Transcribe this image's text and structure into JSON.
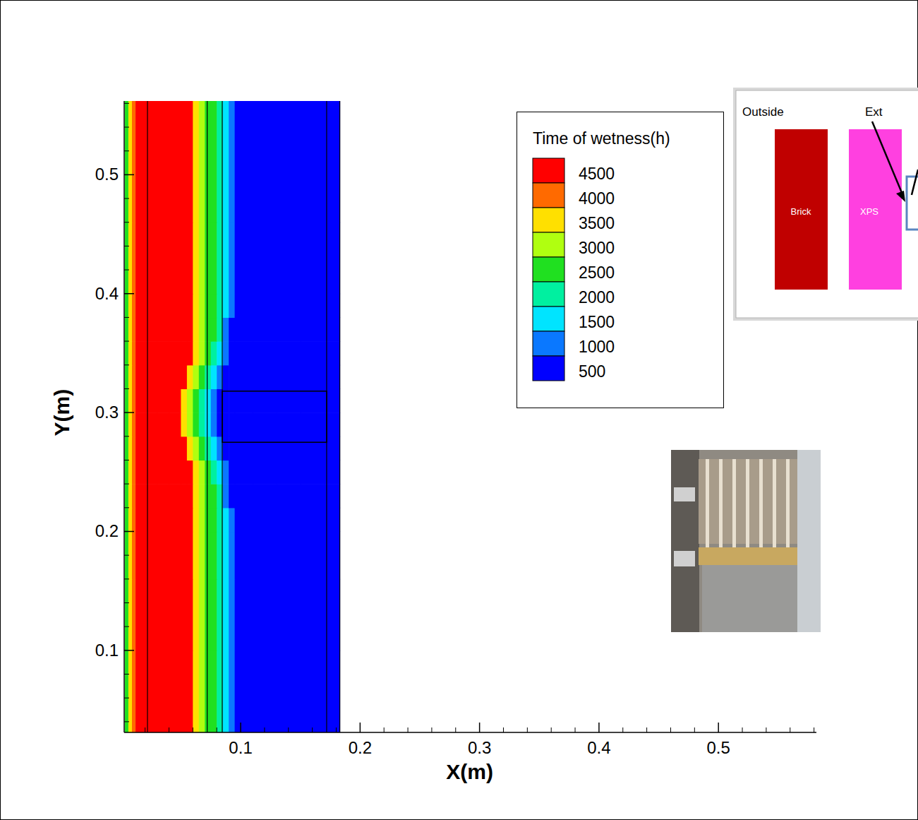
{
  "chart_data": {
    "type": "contour",
    "x_label": "X(m)",
    "y_label": "Y(m)",
    "xlim": [
      0.0025,
      0.582
    ],
    "ylim": [
      0.031,
      0.562
    ],
    "xticks": [
      0.1,
      0.2,
      0.3,
      0.4,
      0.5
    ],
    "yticks": [
      0.1,
      0.2,
      0.3,
      0.4,
      0.5
    ],
    "x_edges": [
      0.003,
      0.006,
      0.009,
      0.012,
      0.02,
      0.03,
      0.04,
      0.05,
      0.055,
      0.06,
      0.065,
      0.07,
      0.075,
      0.08,
      0.085,
      0.09,
      0.095,
      0.11,
      0.13,
      0.15,
      0.17,
      0.183
    ],
    "y_edges": [
      0.031,
      0.1,
      0.16,
      0.2,
      0.22,
      0.24,
      0.26,
      0.28,
      0.3,
      0.32,
      0.34,
      0.36,
      0.38,
      0.4,
      0.46,
      0.562
    ],
    "cells": [
      [
        2800,
        3700,
        4200,
        4800,
        4800,
        4800,
        4800,
        4800,
        4800,
        3800,
        3200,
        2700,
        2600,
        2200,
        1600,
        1100,
        300,
        300,
        300,
        300,
        300
      ],
      [
        2800,
        3700,
        4200,
        4800,
        4800,
        4800,
        4800,
        4800,
        4800,
        3800,
        3200,
        2700,
        2600,
        2200,
        1600,
        1100,
        300,
        300,
        300,
        300,
        300
      ],
      [
        2800,
        3700,
        4200,
        4800,
        4800,
        4800,
        4800,
        4800,
        4800,
        3800,
        3200,
        2700,
        2600,
        2200,
        1600,
        1100,
        300,
        300,
        300,
        300,
        300
      ],
      [
        2800,
        3700,
        4200,
        4800,
        4800,
        4800,
        4800,
        4800,
        4800,
        3800,
        3200,
        2700,
        2600,
        2200,
        1600,
        1100,
        300,
        300,
        300,
        300,
        300
      ],
      [
        2800,
        3700,
        4200,
        4800,
        4800,
        4800,
        4800,
        4800,
        4800,
        3800,
        3200,
        2700,
        2500,
        2100,
        1200,
        700,
        300,
        300,
        300,
        300,
        300
      ],
      [
        2800,
        3700,
        4200,
        4800,
        4800,
        4800,
        4800,
        4800,
        4800,
        3800,
        3200,
        2600,
        2200,
        1600,
        1100,
        500,
        300,
        300,
        300,
        300,
        300
      ],
      [
        2800,
        3700,
        4200,
        4800,
        4800,
        4800,
        4800,
        4800,
        3800,
        3200,
        2700,
        2200,
        1600,
        1100,
        700,
        300,
        300,
        300,
        300,
        300,
        300
      ],
      [
        2800,
        3700,
        4200,
        4800,
        4800,
        4800,
        4800,
        3800,
        3200,
        2700,
        2200,
        1600,
        1100,
        800,
        300,
        300,
        300,
        300,
        300,
        300,
        300
      ],
      [
        2800,
        3700,
        4200,
        4800,
        4800,
        4800,
        4800,
        3800,
        3200,
        2700,
        2200,
        1600,
        1100,
        800,
        300,
        300,
        300,
        300,
        300,
        300,
        300
      ],
      [
        2800,
        3700,
        4200,
        4800,
        4800,
        4800,
        4800,
        4800,
        3800,
        3200,
        2700,
        2200,
        1600,
        1100,
        700,
        300,
        300,
        300,
        300,
        300,
        300
      ],
      [
        2800,
        3700,
        4200,
        4800,
        4800,
        4800,
        4800,
        4800,
        4800,
        3800,
        3200,
        2600,
        2200,
        1600,
        1100,
        500,
        300,
        300,
        300,
        300,
        300
      ],
      [
        2800,
        3700,
        4200,
        4800,
        4800,
        4800,
        4800,
        4800,
        4800,
        3800,
        3200,
        2700,
        2500,
        2100,
        1200,
        700,
        300,
        300,
        300,
        300,
        300
      ],
      [
        2800,
        3700,
        4200,
        4800,
        4800,
        4800,
        4800,
        4800,
        4800,
        3800,
        3200,
        2700,
        2600,
        2200,
        1600,
        1100,
        300,
        300,
        300,
        300,
        300
      ],
      [
        2800,
        3700,
        4200,
        4800,
        4800,
        4800,
        4800,
        4800,
        4800,
        3800,
        3200,
        2700,
        2600,
        2200,
        1600,
        1100,
        300,
        300,
        300,
        300,
        300
      ],
      [
        2800,
        3700,
        4200,
        4800,
        4800,
        4800,
        4800,
        4800,
        4800,
        3800,
        3200,
        2700,
        2600,
        2200,
        1600,
        1100,
        300,
        300,
        300,
        300,
        300
      ]
    ],
    "material_boundaries_x": [
      0.022,
      0.072,
      0.0846,
      0.172,
      0.183
    ],
    "anchor": {
      "x": [
        0.0846,
        0.172
      ],
      "y": [
        0.275,
        0.318
      ]
    },
    "colorbar": {
      "title": "Time of wetness(h)",
      "levels": [
        500,
        1000,
        1500,
        2000,
        2500,
        3000,
        3500,
        4000,
        4500
      ],
      "colors": [
        "#0000ff",
        "#0a78ff",
        "#00e4ff",
        "#00f0a0",
        "#20e020",
        "#b0ff10",
        "#ffe000",
        "#ff6a00",
        "#ff0000"
      ]
    },
    "inset": {
      "labels": [
        "Outside",
        "Ext",
        "Brick",
        "XPS"
      ]
    }
  }
}
